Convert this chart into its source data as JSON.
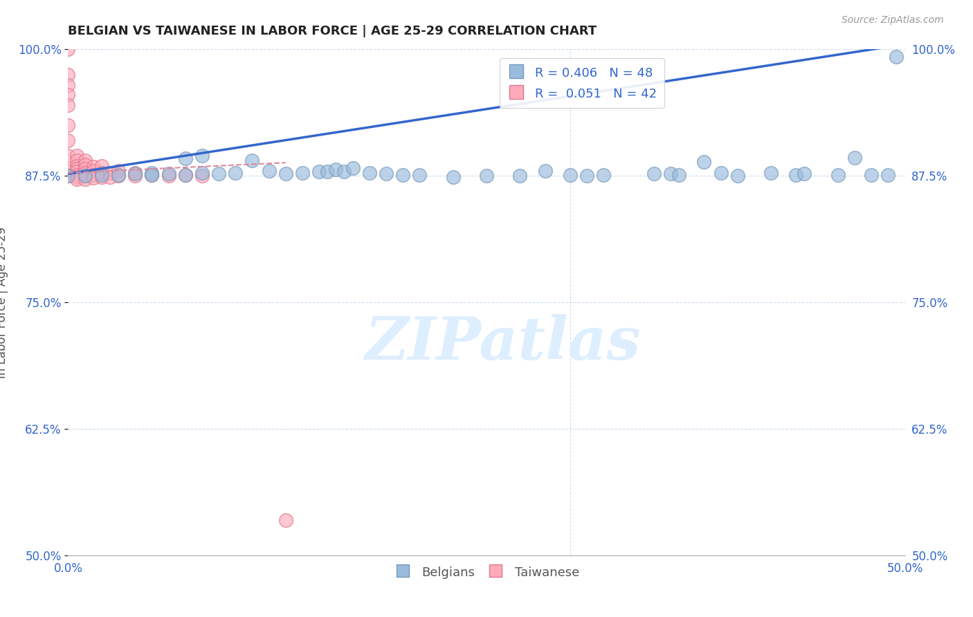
{
  "title": "BELGIAN VS TAIWANESE IN LABOR FORCE | AGE 25-29 CORRELATION CHART",
  "source_text": "Source: ZipAtlas.com",
  "ylabel": "In Labor Force | Age 25-29",
  "xlim": [
    0.0,
    0.5
  ],
  "ylim": [
    0.5,
    1.0
  ],
  "xticks": [
    0.0,
    0.1,
    0.2,
    0.3,
    0.4,
    0.5
  ],
  "yticks": [
    0.5,
    0.625,
    0.75,
    0.875,
    1.0
  ],
  "xticklabels": [
    "0.0%",
    "",
    "",
    "",
    "",
    "50.0%"
  ],
  "yticklabels": [
    "50.0%",
    "62.5%",
    "75.0%",
    "87.5%",
    "100.0%"
  ],
  "belgian_color": "#99bbdd",
  "taiwanese_color": "#ffaabb",
  "belgian_edge": "#7799bb",
  "taiwanese_edge": "#dd7788",
  "trend_blue": "#3366cc",
  "trend_pink": "#dd8899",
  "watermark_color": "#ddeeff",
  "legend_label_blue": "Belgians",
  "legend_label_pink": "Taiwanese",
  "belgians_x": [
    0.0,
    0.01,
    0.02,
    0.03,
    0.04,
    0.05,
    0.05,
    0.06,
    0.07,
    0.07,
    0.08,
    0.08,
    0.09,
    0.1,
    0.11,
    0.12,
    0.13,
    0.14,
    0.15,
    0.155,
    0.16,
    0.165,
    0.17,
    0.18,
    0.19,
    0.2,
    0.21,
    0.23,
    0.25,
    0.27,
    0.285,
    0.3,
    0.31,
    0.32,
    0.35,
    0.36,
    0.365,
    0.38,
    0.39,
    0.4,
    0.42,
    0.435,
    0.44,
    0.46,
    0.47,
    0.48,
    0.49,
    0.495
  ],
  "belgians_y": [
    0.875,
    0.875,
    0.876,
    0.876,
    0.877,
    0.878,
    0.876,
    0.877,
    0.892,
    0.876,
    0.895,
    0.878,
    0.877,
    0.878,
    0.89,
    0.88,
    0.877,
    0.878,
    0.879,
    0.879,
    0.881,
    0.879,
    0.883,
    0.878,
    0.877,
    0.876,
    0.876,
    0.874,
    0.875,
    0.875,
    0.88,
    0.876,
    0.875,
    0.876,
    0.877,
    0.877,
    0.876,
    0.889,
    0.878,
    0.875,
    0.878,
    0.876,
    0.877,
    0.876,
    0.893,
    0.876,
    0.876,
    0.993
  ],
  "taiwanese_x": [
    0.0,
    0.0,
    0.0,
    0.0,
    0.0,
    0.0,
    0.0,
    0.0,
    0.0,
    0.0,
    0.005,
    0.005,
    0.005,
    0.005,
    0.005,
    0.005,
    0.005,
    0.005,
    0.01,
    0.01,
    0.01,
    0.01,
    0.01,
    0.01,
    0.015,
    0.015,
    0.015,
    0.015,
    0.02,
    0.02,
    0.02,
    0.025,
    0.025,
    0.03,
    0.03,
    0.04,
    0.04,
    0.05,
    0.06,
    0.07,
    0.08,
    0.13
  ],
  "taiwanese_y": [
    1.0,
    0.975,
    0.965,
    0.955,
    0.945,
    0.925,
    0.91,
    0.895,
    0.88,
    0.875,
    0.895,
    0.89,
    0.885,
    0.882,
    0.879,
    0.876,
    0.874,
    0.872,
    0.89,
    0.886,
    0.882,
    0.878,
    0.875,
    0.872,
    0.884,
    0.88,
    0.876,
    0.873,
    0.885,
    0.878,
    0.874,
    0.878,
    0.874,
    0.88,
    0.875,
    0.878,
    0.875,
    0.876,
    0.875,
    0.876,
    0.875,
    0.535
  ]
}
